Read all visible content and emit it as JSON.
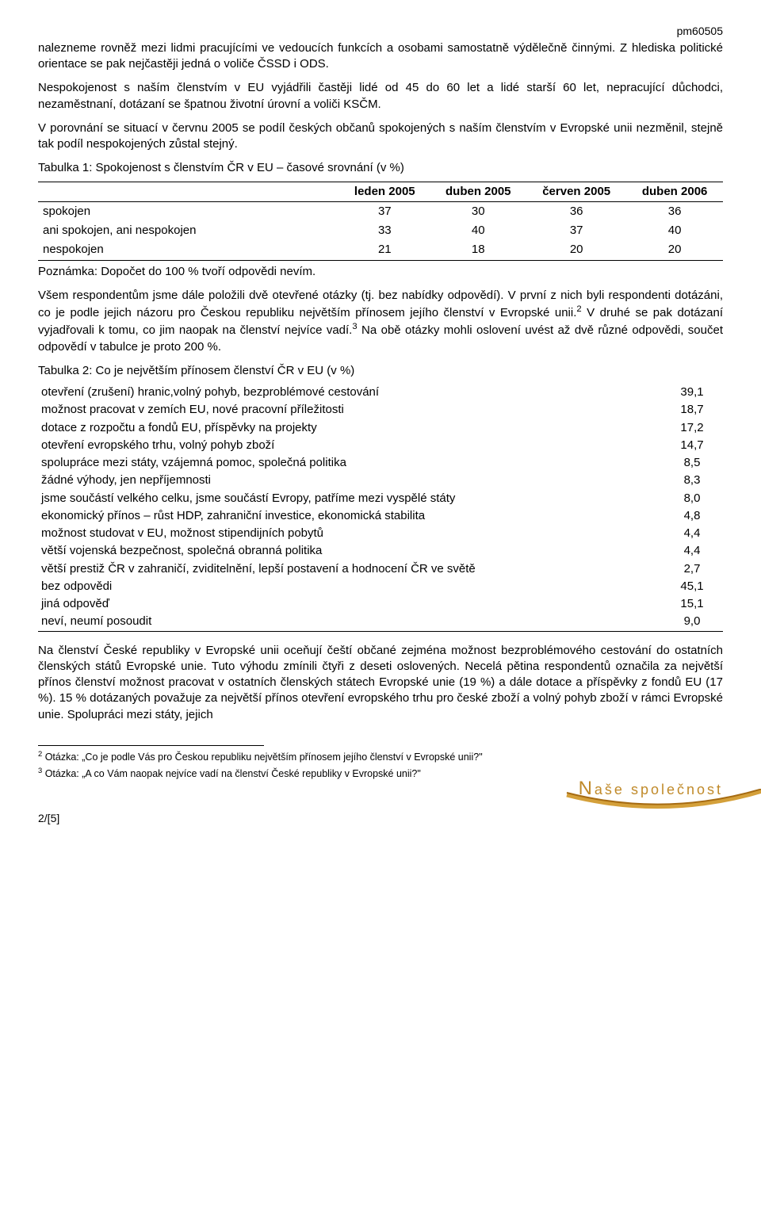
{
  "header_id": "pm60505",
  "paragraphs": {
    "p1": "nalezneme rovněž mezi lidmi pracujícími ve vedoucích funkcích a osobami samostatně výdělečně činnými. Z hlediska politické orientace se pak nejčastěji jedná o voliče ČSSD i ODS.",
    "p2": "Nespokojenost s naším členstvím v EU vyjádřili častěji lidé od 45 do 60 let a lidé starší 60 let, nepracující důchodci, nezaměstnaní, dotázaní se špatnou životní úrovní a voliči KSČM.",
    "p3": "V porovnání se situací v červnu 2005 se podíl českých občanů spokojených s naším členstvím v Evropské unii nezměnil, stejně tak podíl nespokojených zůstal stejný.",
    "p4_a": "Všem respondentům jsme dále položili dvě otevřené otázky (tj. bez nabídky odpovědí). V první z nich byli respondenti dotázáni, co je podle jejich názoru pro Českou republiku největším přínosem jejího členství v Evropské unii.",
    "p4_b": " V druhé se pak dotázaní vyjadřovali k tomu, co jim naopak na členství nejvíce vadí.",
    "p4_c": " Na obě otázky mohli oslovení uvést až dvě různé odpovědi, součet odpovědí v tabulce je proto 200 %.",
    "p5": "Na členství České republiky v Evropské unii oceňují čeští občané zejména možnost bezproblémového cestování do ostatních členských států Evropské unie. Tuto výhodu zmínili čtyři z deseti oslovených. Necelá pětina respondentů označila za největší přínos členství možnost pracovat v ostatních členských státech Evropské unie (19 %) a dále dotace a příspěvky z fondů EU (17 %). 15 % dotázaných považuje za největší přínos otevření evropského trhu pro české zboží a volný pohyb zboží v rámci Evropské unie. Spolupráci mezi státy, jejich"
  },
  "table1": {
    "title": "Tabulka 1: Spokojenost s členstvím ČR v EU – časové srovnání (v %)",
    "columns": [
      "",
      "leden 2005",
      "duben 2005",
      "červen 2005",
      "duben 2006"
    ],
    "rows": [
      [
        "spokojen",
        "37",
        "30",
        "36",
        "36"
      ],
      [
        "ani spokojen, ani nespokojen",
        "33",
        "40",
        "37",
        "40"
      ],
      [
        "nespokojen",
        "21",
        "18",
        "20",
        "20"
      ]
    ],
    "note": "Poznámka: Dopočet do 100 % tvoří odpovědi nevím."
  },
  "table2": {
    "title": "Tabulka 2: Co je největším přínosem členství ČR v EU (v %)",
    "rows": [
      [
        "otevření (zrušení) hranic,volný pohyb, bezproblémové cestování",
        "39,1"
      ],
      [
        "možnost pracovat v zemích EU, nové pracovní příležitosti",
        "18,7"
      ],
      [
        "dotace z rozpočtu a fondů EU, příspěvky na projekty",
        "17,2"
      ],
      [
        "otevření evropského trhu, volný pohyb zboží",
        "14,7"
      ],
      [
        "spolupráce mezi státy, vzájemná pomoc, společná politika",
        "8,5"
      ],
      [
        "žádné výhody, jen nepříjemnosti",
        "8,3"
      ],
      [
        "jsme součástí velkého celku, jsme součástí Evropy, patříme mezi vyspělé státy",
        "8,0"
      ],
      [
        "ekonomický přínos – růst HDP, zahraniční investice, ekonomická stabilita",
        "4,8"
      ],
      [
        "možnost studovat v EU, možnost stipendijních pobytů",
        "4,4"
      ],
      [
        "větší vojenská bezpečnost, společná obranná politika",
        "4,4"
      ],
      [
        "větší prestiž ČR v zahraničí, zviditelnění, lepší postavení a hodnocení ČR ve světě",
        "2,7"
      ],
      [
        "bez odpovědi",
        "45,1"
      ],
      [
        "jiná odpověď",
        "15,1"
      ],
      [
        "neví, neumí posoudit",
        "9,0"
      ]
    ]
  },
  "footnotes": {
    "f2": "Otázka: „Co je podle Vás pro Českou republiku největším přínosem jejího členství v Evropské unii?\"",
    "f3": "Otázka: „A co Vám naopak nejvíce vadí na členství České republiky v Evropské unii?\""
  },
  "logo_text": {
    "cap": "N",
    "rest1": "aše ",
    "rest2": "společnost"
  },
  "page_num": "2/[5]"
}
